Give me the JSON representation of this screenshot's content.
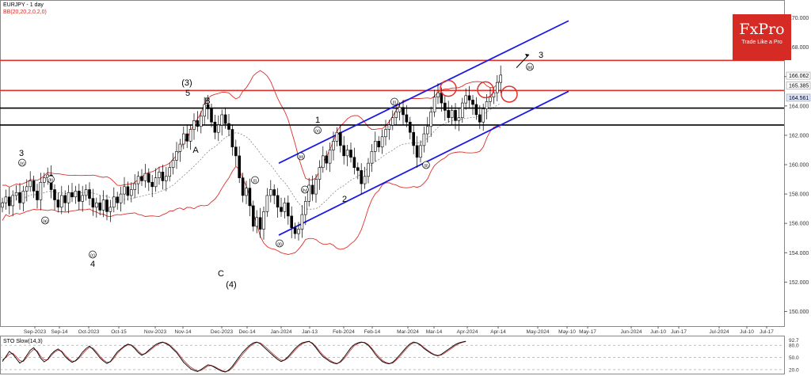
{
  "header": {
    "symbol": "EURJPY - 1 day",
    "indicator": "BB(20,20,2,0,2,0)"
  },
  "logo": {
    "brand": "FxPro",
    "tagline": "Trade Like a Pro"
  },
  "colors": {
    "candle_up": "#ffffff",
    "candle_down": "#000000",
    "bb_band": "#e0302a",
    "resistance": "#e0302a",
    "support": "#000000",
    "channel": "#1a1ae6",
    "circle": "#e0302a",
    "sto_k": "#000000",
    "sto_d": "#c04040"
  },
  "chart_data": [
    {
      "type": "candlestick",
      "title": "EURJPY - 1 day",
      "y_axis": {
        "min": 149,
        "max": 171,
        "ticks": [
          "150.000",
          "152.000",
          "154.000",
          "156.000",
          "158.000",
          "160.000",
          "162.000",
          "164.000",
          "166.000",
          "168.000",
          "170.000"
        ]
      },
      "x_axis": {
        "ticks": [
          "Sep-2023",
          "Sep-14",
          "Oct-2023",
          "Oct-15",
          "Nov-2023",
          "Nov-14",
          "Dec-2023",
          "Dec-14",
          "Jan-2024",
          "Jan-13",
          "Feb-2024",
          "Feb-14",
          "Mar-2024",
          "Mar-14",
          "Apr-2024",
          "Apr-14",
          "May-2024",
          "May-10",
          "May-17",
          "Jun-2024",
          "Jun-10",
          "Jun-17",
          "Jul-2024",
          "Jul-10",
          "Jul-17"
        ]
      },
      "price_labels": [
        "166.062",
        "165.385",
        "164.561"
      ],
      "horizontal_lines": [
        {
          "role": "resistance",
          "value": 167.1
        },
        {
          "role": "resistance",
          "value": 165.05
        },
        {
          "role": "support",
          "value": 163.85
        },
        {
          "role": "support",
          "value": 162.7
        }
      ],
      "channel": {
        "lower": [
          [
            "Dec-31",
            155.2
          ],
          [
            "May-05",
            165.0
          ]
        ],
        "upper": [
          [
            "Dec-31",
            160.1
          ],
          [
            "May-05",
            169.8
          ]
        ]
      },
      "wave_labels": [
        "3",
        "(v)",
        "(b)",
        "(a)",
        "(c)",
        "4",
        "(3)",
        "5",
        "B",
        "A",
        "C",
        "(4)",
        "(i)",
        "(ii)",
        "(iii)",
        "(iv)",
        "(v)",
        "1",
        "2",
        "(i)",
        "(ii)",
        "(iii)",
        "3"
      ],
      "series": [
        {
          "name": "EURJPY",
          "close": [
            157.4,
            157.8,
            157.2,
            157.9,
            158.1,
            157.4,
            158.2,
            158.5,
            158.9,
            158.2,
            157.6,
            158.8,
            159.1,
            159.3,
            158.3,
            157.6,
            157.1,
            157.9,
            157.4,
            158.1,
            157.8,
            158.2,
            157.5,
            157.9,
            158.3,
            157.7,
            157.1,
            157.4,
            156.9,
            157.6,
            156.8,
            157.1,
            157.8,
            157.4,
            158.0,
            158.5,
            157.9,
            158.3,
            158.7,
            159.2,
            158.9,
            159.4,
            158.8,
            158.5,
            159.1,
            159.5,
            158.9,
            159.2,
            159.8,
            160.3,
            160.9,
            161.4,
            162.1,
            161.6,
            162.4,
            163.0,
            162.6,
            163.3,
            164.1,
            163.8,
            162.9,
            162.2,
            162.7,
            163.4,
            162.8,
            162.4,
            161.2,
            160.6,
            159.1,
            157.9,
            158.4,
            157.2,
            155.8,
            156.4,
            155.6,
            156.8,
            157.9,
            158.3,
            157.9,
            157.1,
            156.8,
            157.4,
            156.5,
            155.7,
            155.3,
            155.6,
            156.6,
            157.5,
            158.6,
            158.0,
            159.0,
            159.8,
            160.6,
            160.1,
            161.0,
            161.6,
            162.2,
            161.3,
            160.6,
            161.0,
            160.5,
            159.8,
            159.6,
            158.7,
            159.2,
            160.1,
            160.9,
            161.6,
            161.2,
            161.9,
            162.4,
            162.7,
            163.2,
            163.6,
            163.9,
            163.4,
            162.9,
            162.2,
            161.3,
            160.5,
            161.3,
            162.1,
            162.6,
            163.6,
            164.6,
            164.9,
            164.2,
            163.7,
            163.2,
            163.7,
            163.0,
            163.2,
            164.2,
            164.7,
            164.4,
            164.1,
            163.4,
            162.9,
            163.8,
            164.3,
            164.6,
            164.9,
            165.6,
            166.1
          ]
        }
      ]
    },
    {
      "type": "line",
      "title": "STO Slow(14,3)",
      "y_axis": {
        "min": 10,
        "max": 100,
        "ticks": [
          "92.7",
          "80.0",
          "50.0",
          "20.0"
        ]
      },
      "series": [
        {
          "name": "%K",
          "values": [
            40,
            52,
            65,
            58,
            47,
            36,
            42,
            55,
            68,
            74,
            63,
            48,
            39,
            45,
            58,
            66,
            71,
            64,
            52,
            44,
            38,
            42,
            51,
            63,
            72,
            78,
            70,
            60,
            49,
            41,
            35,
            40,
            52,
            64,
            71,
            78,
            83,
            80,
            72,
            62,
            55,
            60,
            68,
            75,
            82,
            86,
            88,
            84,
            79,
            70,
            62,
            50,
            38,
            30,
            22,
            18,
            15,
            20,
            26,
            32,
            30,
            25,
            20,
            16,
            14,
            19,
            28,
            40,
            52,
            63,
            72,
            80,
            86,
            88,
            84,
            76,
            68,
            60,
            52,
            45,
            40,
            44,
            52,
            62,
            72,
            80,
            86,
            88,
            90,
            84,
            74,
            62,
            52,
            46,
            40,
            36,
            34,
            40,
            50,
            62,
            74,
            82,
            86,
            88,
            86,
            80,
            70,
            58,
            48,
            40,
            36,
            34,
            38,
            46,
            56,
            66,
            76,
            84,
            88,
            86,
            80,
            72,
            66,
            60,
            56,
            54,
            58,
            64,
            70,
            76,
            82,
            86,
            88,
            90
          ]
        },
        {
          "name": "%D",
          "values": [
            44,
            50,
            58,
            60,
            52,
            42,
            40,
            50,
            62,
            70,
            66,
            53,
            44,
            44,
            54,
            63,
            68,
            66,
            56,
            47,
            41,
            41,
            48,
            58,
            68,
            75,
            73,
            64,
            53,
            44,
            38,
            39,
            48,
            60,
            69,
            76,
            81,
            81,
            75,
            66,
            58,
            59,
            65,
            72,
            79,
            84,
            87,
            86,
            81,
            73,
            65,
            54,
            43,
            34,
            26,
            21,
            17,
            18,
            23,
            29,
            30,
            27,
            22,
            18,
            15,
            17,
            24,
            35,
            47,
            58,
            68,
            77,
            83,
            87,
            86,
            80,
            72,
            64,
            56,
            49,
            43,
            43,
            49,
            58,
            68,
            77,
            83,
            87,
            89,
            86,
            77,
            66,
            56,
            49,
            43,
            38,
            35,
            38,
            46,
            57,
            69,
            79,
            84,
            87,
            87,
            82,
            73,
            62,
            52,
            43,
            38,
            35,
            36,
            43,
            52,
            62,
            72,
            81,
            86,
            86,
            82,
            75,
            68,
            62,
            57,
            55,
            56,
            61,
            67,
            73,
            79,
            84,
            87,
            89
          ]
        }
      ]
    }
  ]
}
